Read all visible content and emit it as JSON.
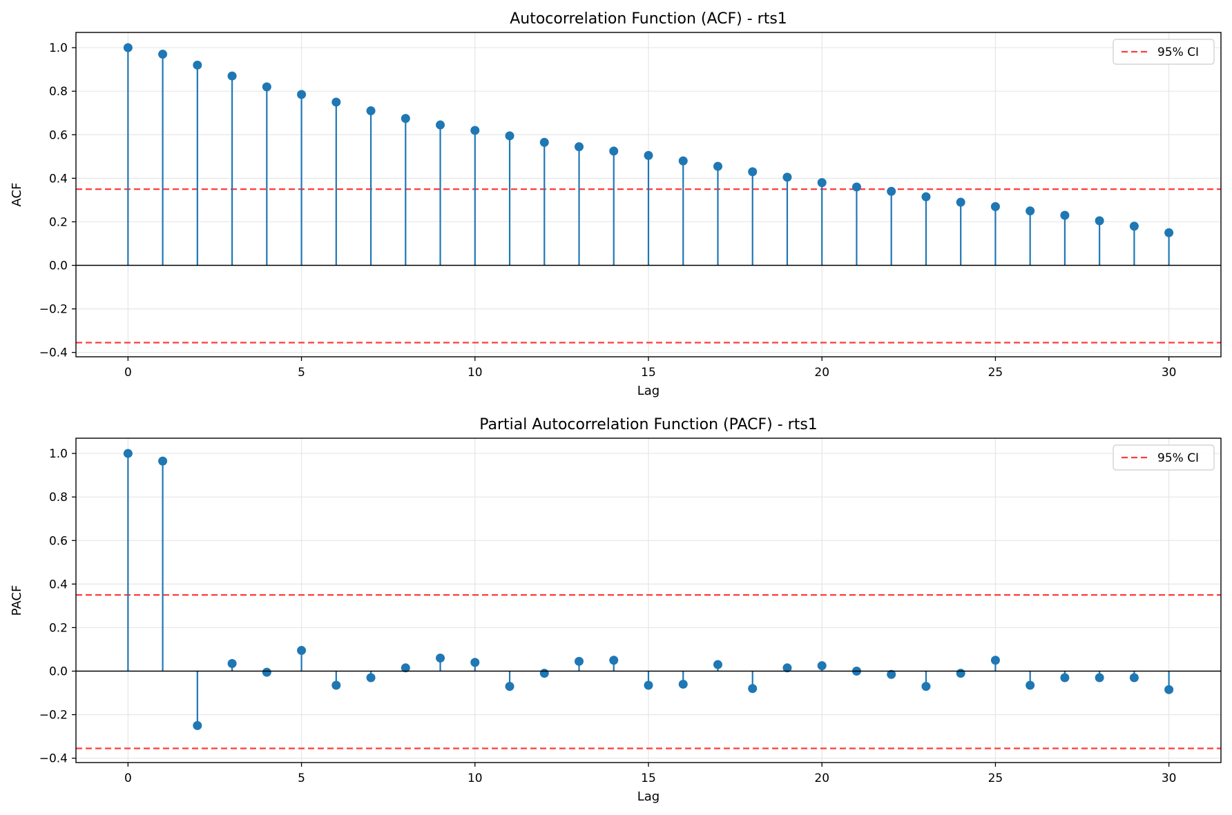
{
  "colors": {
    "stem": "#1f77b4",
    "ci_line": "#ff3b3b",
    "baseline": "#000000",
    "grid": "#e6e6e6",
    "axes": "#000000"
  },
  "chart_data": [
    {
      "type": "stem",
      "title": "Autocorrelation Function (ACF) - rts1",
      "xlabel": "Lag",
      "ylabel": "ACF",
      "xlim": [
        -1.5,
        31.5
      ],
      "ylim": [
        -0.42,
        1.07
      ],
      "xticks": [
        0,
        5,
        10,
        15,
        20,
        25,
        30
      ],
      "xtick_labels": [
        "0",
        "5",
        "10",
        "15",
        "20",
        "25",
        "30"
      ],
      "yticks": [
        -0.4,
        -0.2,
        0.0,
        0.2,
        0.4,
        0.6,
        0.8,
        1.0
      ],
      "ytick_labels": [
        "−0.4",
        "−0.2",
        "0.0",
        "0.2",
        "0.4",
        "0.6",
        "0.8",
        "1.0"
      ],
      "grid": true,
      "legend_position": "top-right",
      "ci": {
        "label": "95% CI",
        "upper": 0.35,
        "lower": -0.355,
        "style": "dashed"
      },
      "x": [
        0,
        1,
        2,
        3,
        4,
        5,
        6,
        7,
        8,
        9,
        10,
        11,
        12,
        13,
        14,
        15,
        16,
        17,
        18,
        19,
        20,
        21,
        22,
        23,
        24,
        25,
        26,
        27,
        28,
        29,
        30
      ],
      "values": [
        1.0,
        0.97,
        0.92,
        0.87,
        0.82,
        0.785,
        0.75,
        0.71,
        0.675,
        0.645,
        0.62,
        0.595,
        0.565,
        0.545,
        0.525,
        0.505,
        0.48,
        0.455,
        0.43,
        0.405,
        0.38,
        0.36,
        0.34,
        0.315,
        0.29,
        0.27,
        0.25,
        0.23,
        0.205,
        0.18,
        0.15
      ]
    },
    {
      "type": "stem",
      "title": "Partial Autocorrelation Function (PACF) - rts1",
      "xlabel": "Lag",
      "ylabel": "PACF",
      "xlim": [
        -1.5,
        31.5
      ],
      "ylim": [
        -0.42,
        1.07
      ],
      "xticks": [
        0,
        5,
        10,
        15,
        20,
        25,
        30
      ],
      "xtick_labels": [
        "0",
        "5",
        "10",
        "15",
        "20",
        "25",
        "30"
      ],
      "yticks": [
        -0.4,
        -0.2,
        0.0,
        0.2,
        0.4,
        0.6,
        0.8,
        1.0
      ],
      "ytick_labels": [
        "−0.4",
        "−0.2",
        "0.0",
        "0.2",
        "0.4",
        "0.6",
        "0.8",
        "1.0"
      ],
      "grid": true,
      "legend_position": "top-right",
      "ci": {
        "label": "95% CI",
        "upper": 0.35,
        "lower": -0.355,
        "style": "dashed"
      },
      "x": [
        0,
        1,
        2,
        3,
        4,
        5,
        6,
        7,
        8,
        9,
        10,
        11,
        12,
        13,
        14,
        15,
        16,
        17,
        18,
        19,
        20,
        21,
        22,
        23,
        24,
        25,
        26,
        27,
        28,
        29,
        30
      ],
      "values": [
        1.0,
        0.965,
        -0.25,
        0.035,
        -0.005,
        0.095,
        -0.065,
        -0.03,
        0.015,
        0.06,
        0.04,
        -0.07,
        -0.01,
        0.045,
        0.05,
        -0.065,
        -0.06,
        0.03,
        -0.08,
        0.015,
        0.025,
        0.0,
        -0.015,
        -0.07,
        -0.01,
        0.05,
        -0.065,
        -0.03,
        -0.03,
        -0.03,
        -0.085
      ]
    }
  ]
}
